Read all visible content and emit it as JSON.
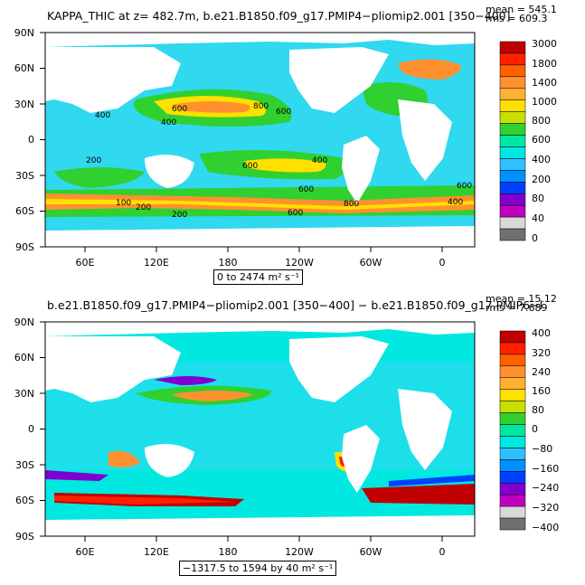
{
  "panel1": {
    "title": "KAPPA_THIC at z= 482.7m, b.e21.B1850.f09_g17.PMIP4−pliomip2.001 [350−400]",
    "mean": "mean = 545.1",
    "rms": "rms = 609.3",
    "range_text": "0 to 2474 m² s⁻¹",
    "lat_labels": [
      "90N",
      "60N",
      "30N",
      "0",
      "30S",
      "60S",
      "90S"
    ],
    "lon_labels": [
      "60E",
      "120E",
      "180",
      "120W",
      "60W",
      "0"
    ],
    "colorbar_labels": [
      "3000",
      "1800",
      "1400",
      "1000",
      "800",
      "600",
      "400",
      "200",
      "80",
      "40",
      "0"
    ],
    "colorbar_colors": [
      "#c00000",
      "#ff2000",
      "#ff6000",
      "#ff9030",
      "#ffb030",
      "#ffe000",
      "#c8e000",
      "#30d030",
      "#00e8a0",
      "#00e8e0",
      "#30c0ff",
      "#0090ff",
      "#0040ff",
      "#8000d0",
      "#c000c0",
      "#d8d8d8",
      "#707070"
    ],
    "contour_labels": [
      "600",
      "400",
      "400",
      "800",
      "600",
      "600",
      "400",
      "200",
      "600",
      "800",
      "600",
      "200",
      "100",
      "600",
      "400",
      "200"
    ]
  },
  "panel2": {
    "title": "b.e21.B1850.f09_g17.PMIP4−pliomip2.001 [350−400] − b.e21.B1850.f09_g17.PMIP6−l",
    "mean": "mean = 15.12",
    "rms": "rms = 7.689",
    "range_text": "−1317.5 to 1594 by 40 m² s⁻¹",
    "lat_labels": [
      "90N",
      "60N",
      "30N",
      "0",
      "30S",
      "60S",
      "90S"
    ],
    "lon_labels": [
      "60E",
      "120E",
      "180",
      "120W",
      "60W",
      "0"
    ],
    "colorbar_labels": [
      "400",
      "320",
      "240",
      "160",
      "80",
      "0",
      "−80",
      "−160",
      "−240",
      "−320",
      "−400"
    ],
    "colorbar_colors": [
      "#c00000",
      "#ff2000",
      "#ff6000",
      "#ff9030",
      "#ffb030",
      "#ffe000",
      "#c8e000",
      "#30d030",
      "#00e8a0",
      "#00e8e0",
      "#30c0ff",
      "#0090ff",
      "#0040ff",
      "#8000d0",
      "#c000c0",
      "#d8d8d8",
      "#707070"
    ]
  },
  "colors": {
    "ocean_base": "#30d8f0",
    "land": "#ffffff",
    "high_orange": "#ff9030",
    "high_yellow": "#ffe000",
    "mid_green": "#30d030",
    "red": "#d00000",
    "blue": "#0040ff",
    "purple": "#8000d0"
  }
}
